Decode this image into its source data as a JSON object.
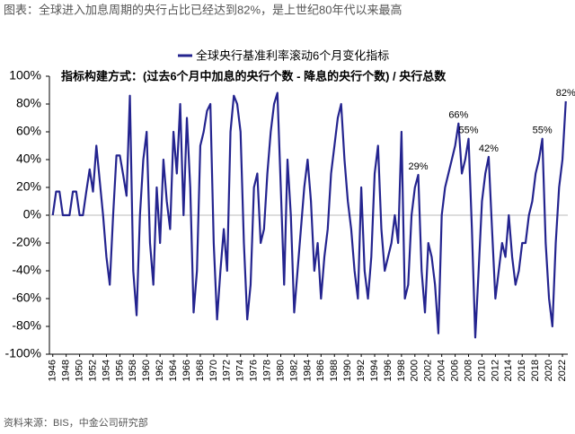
{
  "header": {
    "title": "图表：全球进入加息周期的央行占比已经达到82%，是上世纪80年代以来最高"
  },
  "source": "资料来源：BIS，中金公司研究部",
  "chart_data": {
    "type": "line",
    "subtitle": "指标构建方式：(过去6个月中加息的央行个数 - 降息的央行个数) / 央行总数",
    "x": [
      1946,
      1946.5,
      1947,
      1947.5,
      1948,
      1948.5,
      1949,
      1949.5,
      1950,
      1950.5,
      1951,
      1951.5,
      1952,
      1952.5,
      1953,
      1953.5,
      1954,
      1954.5,
      1955,
      1955.5,
      1956,
      1956.5,
      1957,
      1957.5,
      1958,
      1958.5,
      1959,
      1959.5,
      1960,
      1960.5,
      1961,
      1961.5,
      1962,
      1962.5,
      1963,
      1963.5,
      1964,
      1964.5,
      1965,
      1965.5,
      1966,
      1966.5,
      1967,
      1967.5,
      1968,
      1968.5,
      1969,
      1969.5,
      1970,
      1970.5,
      1971,
      1971.5,
      1972,
      1972.5,
      1973,
      1973.5,
      1974,
      1974.5,
      1975,
      1975.5,
      1976,
      1976.5,
      1977,
      1977.5,
      1978,
      1978.5,
      1979,
      1979.5,
      1980,
      1980.5,
      1981,
      1981.5,
      1982,
      1982.5,
      1983,
      1983.5,
      1984,
      1984.5,
      1985,
      1985.5,
      1986,
      1986.5,
      1987,
      1987.5,
      1988,
      1988.5,
      1989,
      1989.5,
      1990,
      1990.5,
      1991,
      1991.5,
      1992,
      1992.5,
      1993,
      1993.5,
      1994,
      1994.5,
      1995,
      1995.5,
      1996,
      1996.5,
      1997,
      1997.5,
      1998,
      1998.5,
      1999,
      1999.5,
      2000,
      2000.5,
      2001,
      2001.5,
      2002,
      2002.5,
      2003,
      2003.5,
      2004,
      2004.5,
      2005,
      2005.5,
      2006,
      2006.5,
      2007,
      2007.5,
      2008,
      2008.5,
      2009,
      2009.5,
      2010,
      2010.5,
      2011,
      2011.5,
      2012,
      2012.5,
      2013,
      2013.5,
      2014,
      2014.5,
      2015,
      2015.5,
      2016,
      2016.5,
      2017,
      2017.5,
      2018,
      2018.5,
      2019,
      2019.5,
      2020,
      2020.5,
      2021,
      2021.5,
      2022,
      2022.5
    ],
    "series": [
      {
        "name": "全球央行基准利率滚动6个月变化指标",
        "color": "#24248f",
        "values": [
          0,
          17,
          17,
          0,
          0,
          0,
          17,
          17,
          0,
          0,
          17,
          33,
          17,
          50,
          25,
          0,
          -30,
          -50,
          0,
          43,
          43,
          29,
          14,
          86,
          -40,
          -72,
          0,
          40,
          60,
          -20,
          -50,
          20,
          -20,
          40,
          10,
          -10,
          60,
          30,
          80,
          0,
          70,
          20,
          -70,
          -40,
          50,
          60,
          75,
          80,
          -20,
          -75,
          -40,
          -10,
          -40,
          60,
          86,
          80,
          60,
          -20,
          -75,
          -50,
          20,
          30,
          -20,
          -10,
          30,
          60,
          80,
          88,
          20,
          -50,
          40,
          0,
          -70,
          -40,
          -10,
          20,
          40,
          10,
          -40,
          -20,
          -60,
          -30,
          -10,
          30,
          50,
          70,
          80,
          40,
          10,
          -10,
          -40,
          -60,
          20,
          -40,
          -60,
          -30,
          30,
          50,
          -10,
          -40,
          -30,
          -20,
          0,
          -20,
          60,
          -60,
          -50,
          0,
          20,
          29,
          -40,
          -70,
          -20,
          -30,
          -50,
          -85,
          0,
          20,
          30,
          40,
          50,
          66,
          30,
          40,
          55,
          -10,
          -88,
          -40,
          10,
          30,
          42,
          -10,
          -60,
          -40,
          -20,
          -30,
          0,
          -30,
          -50,
          -40,
          -20,
          -20,
          0,
          10,
          30,
          40,
          55,
          -20,
          -60,
          -80,
          -20,
          20,
          40,
          82
        ]
      }
    ],
    "xlim": [
      1945.5,
      2022.8
    ],
    "xticks": [
      1946,
      1948,
      1950,
      1952,
      1954,
      1956,
      1958,
      1960,
      1962,
      1964,
      1966,
      1968,
      1970,
      1972,
      1974,
      1976,
      1978,
      1980,
      1982,
      1984,
      1986,
      1988,
      1990,
      1992,
      1994,
      1996,
      1998,
      2000,
      2002,
      2004,
      2006,
      2008,
      2010,
      2012,
      2014,
      2016,
      2018,
      2020,
      2022
    ],
    "ylim": [
      -100,
      100
    ],
    "yticks": [
      {
        "value": -100,
        "label": "-100%"
      },
      {
        "value": -80,
        "label": "-80%"
      },
      {
        "value": -60,
        "label": "-60%"
      },
      {
        "value": -40,
        "label": "-40%"
      },
      {
        "value": -20,
        "label": "-20%"
      },
      {
        "value": 0,
        "label": "0%"
      },
      {
        "value": 20,
        "label": "20%"
      },
      {
        "value": 40,
        "label": "40%"
      },
      {
        "value": 60,
        "label": "60%"
      },
      {
        "value": 80,
        "label": "80%"
      },
      {
        "value": 100,
        "label": "100%"
      }
    ],
    "annotations": [
      {
        "text": "29%",
        "x": 2000.5,
        "y": 29
      },
      {
        "text": "66%",
        "x": 2006.5,
        "y": 66
      },
      {
        "text": "55%",
        "x": 2008,
        "y": 55
      },
      {
        "text": "42%",
        "x": 2011,
        "y": 42
      },
      {
        "text": "55%",
        "x": 2019,
        "y": 55
      },
      {
        "text": "82%",
        "x": 2022.5,
        "y": 82
      }
    ]
  }
}
